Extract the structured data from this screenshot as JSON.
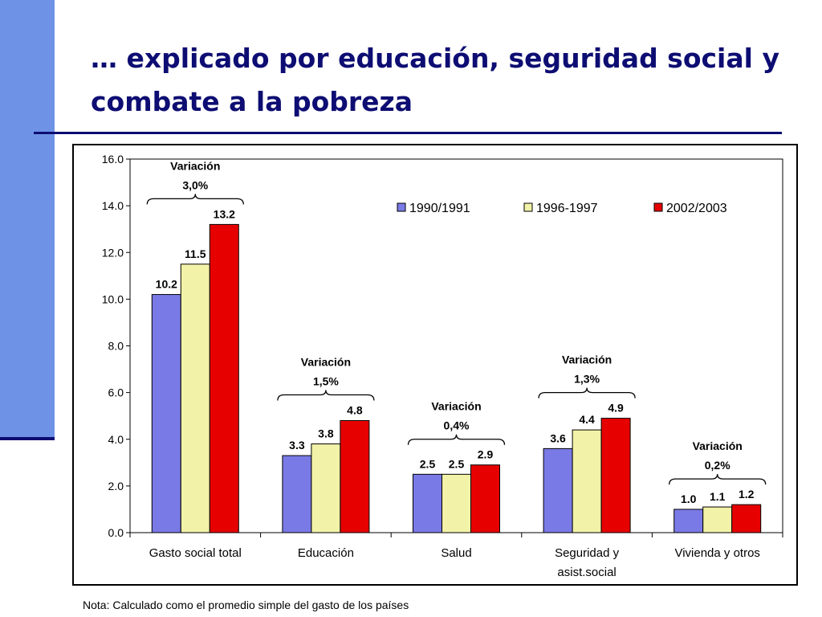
{
  "slide": {
    "title": "… explicado por educación, seguridad social y combate a la pobreza",
    "note": "Nota: Calculado como el promedio simple del gasto de los países"
  },
  "chart_data": {
    "type": "bar",
    "title": "",
    "xlabel": "",
    "ylabel": "",
    "categories": [
      "Gasto social total",
      "Educación",
      "Salud",
      "Seguridad y asist.social",
      "Vivienda y otros"
    ],
    "series": [
      {
        "name": "1990/1991",
        "values": [
          10.2,
          3.3,
          2.5,
          3.6,
          1.0
        ],
        "color": "#7a7ae6"
      },
      {
        "name": "1996-1997",
        "values": [
          11.5,
          3.8,
          2.5,
          4.4,
          1.1
        ],
        "color": "#f2f2a8"
      },
      {
        "name": "2002/2003",
        "values": [
          13.2,
          4.8,
          2.9,
          4.9,
          1.2
        ],
        "color": "#e60000"
      }
    ],
    "ylim": [
      0,
      16
    ],
    "y_ticks": [
      "0.0",
      "2.0",
      "4.0",
      "6.0",
      "8.0",
      "10.0",
      "12.0",
      "14.0",
      "16.0"
    ],
    "grid": false,
    "legend_position": "top-right",
    "annotations": [
      {
        "category": "Gasto social total",
        "label": "Variación",
        "value": "3,0%"
      },
      {
        "category": "Educación",
        "label": "Variación",
        "value": "1,5%"
      },
      {
        "category": "Salud",
        "label": "Variación",
        "value": "0,4%"
      },
      {
        "category": "Seguridad y asist.social",
        "label": "Variación",
        "value": "1,3%"
      },
      {
        "category": "Vivienda y otros",
        "label": "Variación",
        "value": "0,2%"
      }
    ]
  }
}
